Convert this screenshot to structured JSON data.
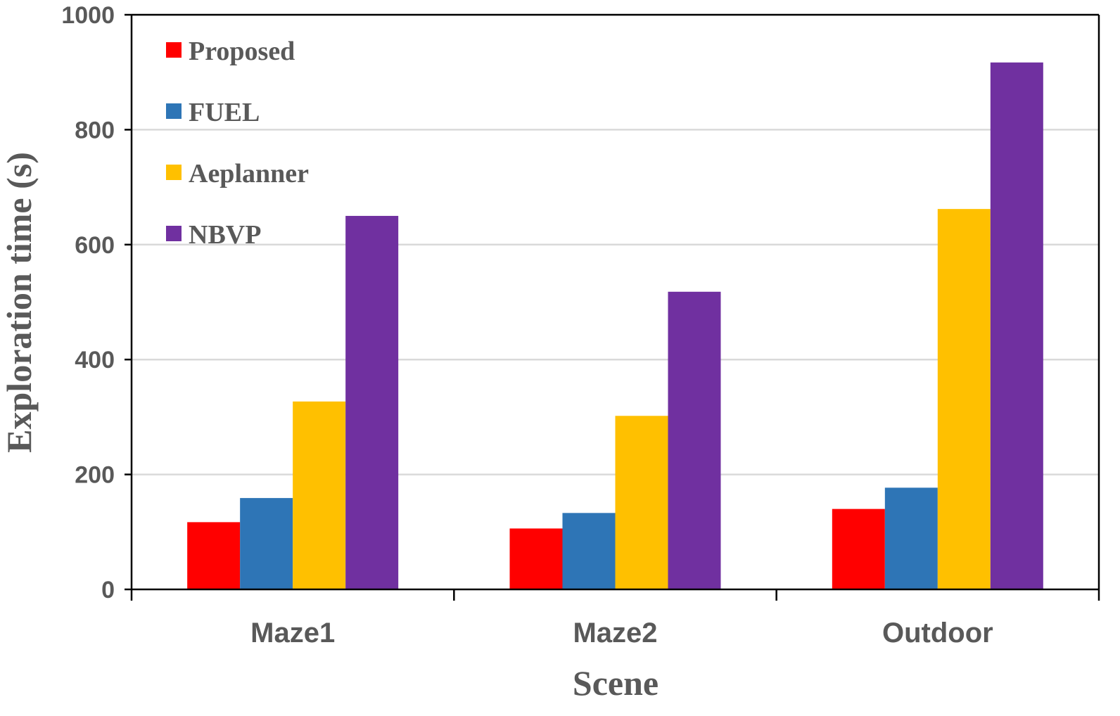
{
  "chart_data": {
    "type": "bar",
    "title": "",
    "xlabel": "Scene",
    "ylabel": "Exploration time (s)",
    "ylim": [
      0,
      1000
    ],
    "yticks": [
      0,
      200,
      400,
      600,
      800,
      1000
    ],
    "categories": [
      "Maze1",
      "Maze2",
      "Outdoor"
    ],
    "series": [
      {
        "name": "Proposed",
        "color": "#ff0000",
        "values": [
          117,
          106,
          140
        ]
      },
      {
        "name": "FUEL",
        "color": "#2e75b6",
        "values": [
          159,
          133,
          177
        ]
      },
      {
        "name": "Aeplanner",
        "color": "#ffc000",
        "values": [
          327,
          302,
          662
        ]
      },
      {
        "name": "NBVP",
        "color": "#7030a0",
        "values": [
          650,
          518,
          917
        ]
      }
    ],
    "grid": true,
    "legend_position": "top-left"
  }
}
